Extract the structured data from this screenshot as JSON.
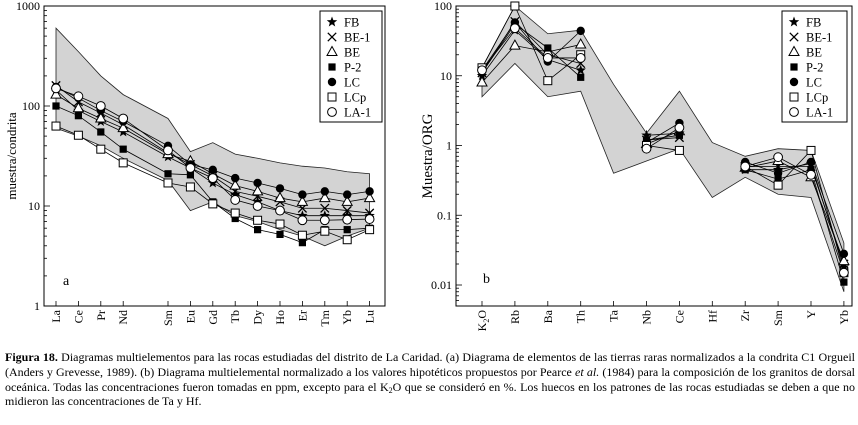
{
  "figure": {
    "caption": {
      "label": "Figura 18.",
      "p1": " Diagramas multielementos para las rocas estudiadas del distrito de La Caridad. (a) Diagrama de elementos de las tierras raras normalizados a la condrita C1 Orgueil (Anders y Grevesse, 1989). (b) Diagrama multielemental normalizado a los valores hipotéticos propuestos por Pearce ",
      "etal": "et al.",
      "p2": " (1984) para la composición de los granitos de dorsal oceánica. Todas las concentraciones fueron tomadas en ppm, excepto para el K",
      "sub": "2",
      "p3": "O que se consideró en %. Los huecos en los patrones de las rocas estudiadas se deben a que no midieron las concentraciones de Ta y Hf."
    }
  },
  "chart_data": [
    {
      "type": "line",
      "panel_label": "a",
      "ylabel": "muestra/condrita",
      "yscale": "log",
      "ylim": [
        1,
        1000
      ],
      "yticks": [
        "1",
        "10",
        "100",
        "1000"
      ],
      "categories": [
        "La",
        "Ce",
        "Pr",
        "Nd",
        "Sm",
        "Eu",
        "Gd",
        "Tb",
        "Dy",
        "Ho",
        "Er",
        "Tm",
        "Yb",
        "Lu"
      ],
      "category_positions": [
        0,
        1,
        2,
        3,
        5,
        6,
        7,
        8,
        9,
        10,
        11,
        12,
        13,
        14
      ],
      "envelope": {
        "upper": [
          600,
          350,
          200,
          130,
          75,
          35,
          43,
          33,
          30,
          27,
          25,
          24,
          22,
          21
        ],
        "lower": [
          60,
          50,
          40,
          30,
          18,
          9,
          11,
          8,
          7,
          5.8,
          5,
          4,
          5,
          6
        ]
      },
      "legend": [
        "FB",
        "BE-1",
        "BE",
        "P-2",
        "LC",
        "LCp",
        "LA-1"
      ],
      "series": [
        {
          "name": "FB",
          "marker": "star",
          "values": [
            145,
            90,
            70,
            55,
            31,
            24,
            17,
            13,
            11,
            9,
            8,
            8,
            8,
            8
          ]
        },
        {
          "name": "BE-1",
          "marker": "x",
          "values": [
            160,
            110,
            85,
            65,
            34,
            26,
            20,
            14,
            12.5,
            11,
            9.5,
            9.5,
            9,
            8.5
          ]
        },
        {
          "name": "BE",
          "marker": "triangle",
          "values": [
            130,
            95,
            75,
            60,
            33,
            28,
            21,
            16,
            14,
            12,
            11,
            12,
            11,
            12
          ]
        },
        {
          "name": "P-2",
          "marker": "square-filled",
          "values": [
            100,
            80,
            55,
            37,
            21,
            20.5,
            11,
            7.5,
            5.8,
            5.2,
            4.3,
            5.8,
            5.8,
            6
          ]
        },
        {
          "name": "LC",
          "marker": "circle-filled",
          "values": [
            155,
            120,
            90,
            70,
            40,
            26,
            23,
            19,
            17,
            15,
            13,
            14,
            13,
            14
          ]
        },
        {
          "name": "LCp",
          "marker": "square-open",
          "values": [
            63,
            51,
            37,
            27,
            17,
            15.5,
            10.5,
            8.5,
            7.2,
            6.6,
            5.1,
            5.6,
            4.6,
            5.8
          ]
        },
        {
          "name": "LA-1",
          "marker": "circle-open",
          "values": [
            150,
            125,
            100,
            75,
            36,
            24,
            19,
            11.5,
            10,
            9,
            7.2,
            7.2,
            7.3,
            7.4
          ]
        }
      ]
    },
    {
      "type": "line",
      "panel_label": "b",
      "ylabel": "Muestra/ORG",
      "yscale": "log",
      "ylim": [
        0.005,
        100
      ],
      "yticks": [
        "0.01",
        "0.1",
        "1",
        "10",
        "100"
      ],
      "categories": [
        "K2O",
        "Rb",
        "Ba",
        "Th",
        "Ta",
        "Nb",
        "Ce",
        "Hf",
        "Zr",
        "Sm",
        "Y",
        "Yb"
      ],
      "category_subscripts": {
        "K2O": "2"
      },
      "envelope": {
        "upper": [
          13,
          100,
          40,
          45,
          7.5,
          1.5,
          6,
          1.1,
          0.7,
          0.9,
          0.85,
          0.04
        ],
        "lower": [
          5,
          15,
          5,
          6,
          0.4,
          0.6,
          0.9,
          0.18,
          0.35,
          0.2,
          0.18,
          0.008
        ]
      },
      "legend": [
        "FB",
        "BE-1",
        "BE",
        "P-2",
        "LC",
        "LCp",
        "LA-1"
      ],
      "series": [
        {
          "name": "FB",
          "marker": "star",
          "values": [
            10,
            45,
            17,
            12,
            null,
            1.4,
            1.5,
            null,
            0.45,
            0.45,
            0.55,
            0.018
          ]
        },
        {
          "name": "BE-1",
          "marker": "x",
          "values": [
            11,
            60,
            20,
            15,
            null,
            1.2,
            1.3,
            null,
            0.5,
            0.5,
            0.5,
            0.02
          ]
        },
        {
          "name": "BE",
          "marker": "triangle",
          "values": [
            8,
            27,
            22,
            28,
            null,
            1.05,
            1.6,
            null,
            0.48,
            0.6,
            0.35,
            0.022
          ]
        },
        {
          "name": "P-2",
          "marker": "square-filled",
          "values": [
            11,
            55,
            25,
            9.5,
            null,
            1.2,
            1.4,
            null,
            0.45,
            0.33,
            0.45,
            0.011
          ]
        },
        {
          "name": "LC",
          "marker": "circle-filled",
          "values": [
            12,
            58,
            16,
            44,
            null,
            1.1,
            2.1,
            null,
            0.58,
            0.4,
            0.58,
            0.028
          ]
        },
        {
          "name": "LCp",
          "marker": "square-open",
          "values": [
            13,
            100,
            8.5,
            20,
            null,
            1.0,
            0.85,
            null,
            0.5,
            0.27,
            0.85,
            0.015
          ]
        },
        {
          "name": "LA-1",
          "marker": "circle-open",
          "values": [
            12,
            48,
            18,
            18,
            null,
            0.9,
            1.8,
            null,
            0.5,
            0.68,
            0.38,
            0.015
          ]
        }
      ]
    }
  ]
}
